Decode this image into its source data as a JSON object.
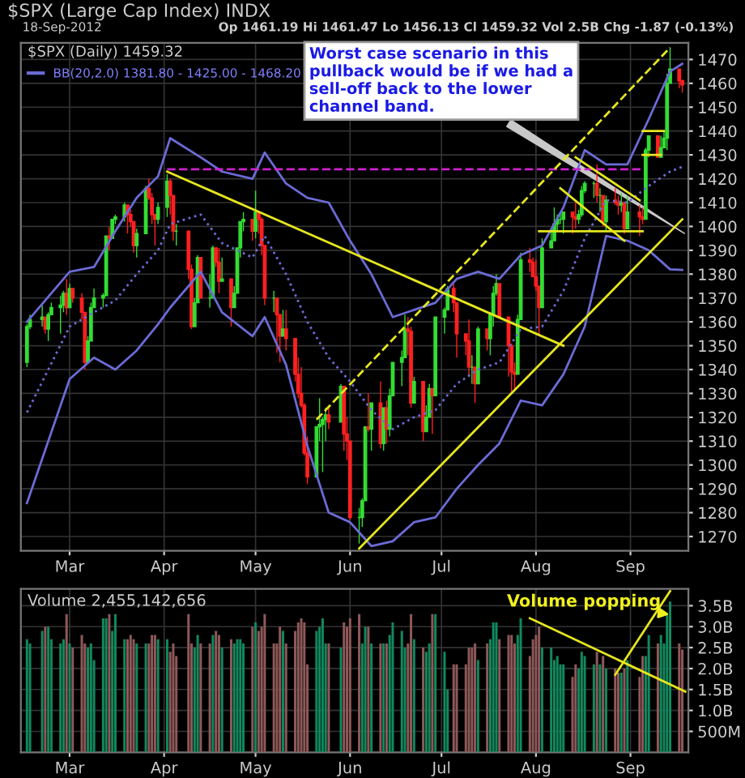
{
  "chart_data": [
    {
      "type": "candlestick",
      "title": "$SPX (Large Cap Index) INDX",
      "subtitle": "18-Sep-2012",
      "x": [
        "2012-02-16",
        "2012-02-17",
        "2012-02-21",
        "2012-02-22",
        "2012-02-23",
        "2012-02-24",
        "2012-02-27",
        "2012-02-28",
        "2012-02-29",
        "2012-03-01",
        "2012-03-02",
        "2012-03-05",
        "2012-03-06",
        "2012-03-07",
        "2012-03-08",
        "2012-03-09",
        "2012-03-12",
        "2012-03-13",
        "2012-03-14",
        "2012-03-15",
        "2012-03-16",
        "2012-03-19",
        "2012-03-20",
        "2012-03-21",
        "2012-03-22",
        "2012-03-23",
        "2012-03-26",
        "2012-03-27",
        "2012-03-28",
        "2012-03-29",
        "2012-03-30",
        "2012-04-02",
        "2012-04-03",
        "2012-04-04",
        "2012-04-05",
        "2012-04-09",
        "2012-04-10",
        "2012-04-11",
        "2012-04-12",
        "2012-04-13",
        "2012-04-16",
        "2012-04-17",
        "2012-04-18",
        "2012-04-19",
        "2012-04-20",
        "2012-04-23",
        "2012-04-24",
        "2012-04-25",
        "2012-04-26",
        "2012-04-27",
        "2012-04-30",
        "2012-05-01",
        "2012-05-02",
        "2012-05-03",
        "2012-05-04",
        "2012-05-07",
        "2012-05-08",
        "2012-05-09",
        "2012-05-10",
        "2012-05-11",
        "2012-05-14",
        "2012-05-15",
        "2012-05-16",
        "2012-05-17",
        "2012-05-18",
        "2012-05-21",
        "2012-05-22",
        "2012-05-23",
        "2012-05-24",
        "2012-05-25",
        "2012-05-29",
        "2012-05-30",
        "2012-05-31",
        "2012-06-01",
        "2012-06-04",
        "2012-06-05",
        "2012-06-06",
        "2012-06-07",
        "2012-06-08",
        "2012-06-11",
        "2012-06-12",
        "2012-06-13",
        "2012-06-14",
        "2012-06-15",
        "2012-06-18",
        "2012-06-19",
        "2012-06-20",
        "2012-06-21",
        "2012-06-22",
        "2012-06-25",
        "2012-06-26",
        "2012-06-27",
        "2012-06-28",
        "2012-06-29",
        "2012-07-02",
        "2012-07-03",
        "2012-07-05",
        "2012-07-06",
        "2012-07-09",
        "2012-07-10",
        "2012-07-11",
        "2012-07-12",
        "2012-07-13",
        "2012-07-16",
        "2012-07-17",
        "2012-07-18",
        "2012-07-19",
        "2012-07-20",
        "2012-07-23",
        "2012-07-24",
        "2012-07-25",
        "2012-07-26",
        "2012-07-27",
        "2012-07-30",
        "2012-07-31",
        "2012-08-01",
        "2012-08-02",
        "2012-08-03",
        "2012-08-06",
        "2012-08-07",
        "2012-08-08",
        "2012-08-09",
        "2012-08-10",
        "2012-08-13",
        "2012-08-14",
        "2012-08-15",
        "2012-08-16",
        "2012-08-17",
        "2012-08-20",
        "2012-08-21",
        "2012-08-22",
        "2012-08-23",
        "2012-08-24",
        "2012-08-27",
        "2012-08-28",
        "2012-08-29",
        "2012-08-30",
        "2012-08-31",
        "2012-09-04",
        "2012-09-05",
        "2012-09-06",
        "2012-09-07",
        "2012-09-10",
        "2012-09-11",
        "2012-09-12",
        "2012-09-13",
        "2012-09-14",
        "2012-09-17",
        "2012-09-18"
      ],
      "ohlc": [
        [
          1343,
          1359,
          1341,
          1358
        ],
        [
          1358,
          1363,
          1357,
          1361
        ],
        [
          1361,
          1367,
          1358,
          1362
        ],
        [
          1362,
          1362,
          1355,
          1357
        ],
        [
          1357,
          1364,
          1352,
          1363
        ],
        [
          1363,
          1368,
          1363,
          1366
        ],
        [
          1366,
          1371,
          1355,
          1367
        ],
        [
          1367,
          1373,
          1364,
          1372
        ],
        [
          1372,
          1378,
          1363,
          1366
        ],
        [
          1366,
          1376,
          1366,
          1374
        ],
        [
          1374,
          1374,
          1368,
          1370
        ],
        [
          1370,
          1372,
          1361,
          1364
        ],
        [
          1364,
          1364,
          1340,
          1343
        ],
        [
          1343,
          1354,
          1343,
          1352
        ],
        [
          1352,
          1368,
          1352,
          1366
        ],
        [
          1366,
          1374,
          1366,
          1370
        ],
        [
          1370,
          1372,
          1366,
          1371
        ],
        [
          1371,
          1396,
          1371,
          1396
        ],
        [
          1396,
          1400,
          1390,
          1395
        ],
        [
          1395,
          1403,
          1395,
          1403
        ],
        [
          1403,
          1405,
          1401,
          1404
        ],
        [
          1404,
          1410,
          1402,
          1409
        ],
        [
          1409,
          1409,
          1397,
          1405
        ],
        [
          1405,
          1407,
          1400,
          1402
        ],
        [
          1402,
          1402,
          1389,
          1392
        ],
        [
          1392,
          1399,
          1387,
          1397
        ],
        [
          1397,
          1417,
          1397,
          1416
        ],
        [
          1416,
          1420,
          1411,
          1412
        ],
        [
          1412,
          1414,
          1401,
          1405
        ],
        [
          1405,
          1405,
          1392,
          1403
        ],
        [
          1403,
          1410,
          1401,
          1408
        ],
        [
          1408,
          1422,
          1404,
          1419
        ],
        [
          1419,
          1420,
          1405,
          1413
        ],
        [
          1413,
          1413,
          1394,
          1398
        ],
        [
          1398,
          1401,
          1392,
          1398
        ],
        [
          1398,
          1398,
          1378,
          1382
        ],
        [
          1382,
          1384,
          1357,
          1358
        ],
        [
          1358,
          1370,
          1358,
          1368
        ],
        [
          1368,
          1388,
          1368,
          1387
        ],
        [
          1387,
          1387,
          1370,
          1370
        ],
        [
          1370,
          1380,
          1366,
          1370
        ],
        [
          1370,
          1392,
          1370,
          1391
        ],
        [
          1391,
          1391,
          1383,
          1385
        ],
        [
          1385,
          1391,
          1372,
          1377
        ],
        [
          1377,
          1387,
          1377,
          1378
        ],
        [
          1378,
          1378,
          1358,
          1366
        ],
        [
          1366,
          1375,
          1366,
          1372
        ],
        [
          1372,
          1391,
          1372,
          1391
        ],
        [
          1391,
          1402,
          1387,
          1402
        ],
        [
          1402,
          1406,
          1398,
          1403
        ],
        [
          1403,
          1403,
          1394,
          1398
        ],
        [
          1398,
          1415,
          1395,
          1406
        ],
        [
          1406,
          1406,
          1397,
          1403
        ],
        [
          1403,
          1404,
          1388,
          1392
        ],
        [
          1392,
          1392,
          1367,
          1370
        ],
        [
          1370,
          1373,
          1364,
          1370
        ],
        [
          1370,
          1370,
          1347,
          1363
        ],
        [
          1363,
          1363,
          1343,
          1354
        ],
        [
          1354,
          1365,
          1354,
          1357
        ],
        [
          1357,
          1365,
          1348,
          1353
        ],
        [
          1353,
          1353,
          1335,
          1338
        ],
        [
          1338,
          1345,
          1328,
          1330
        ],
        [
          1330,
          1341,
          1324,
          1325
        ],
        [
          1325,
          1326,
          1304,
          1305
        ],
        [
          1305,
          1312,
          1292,
          1295
        ],
        [
          1295,
          1316,
          1295,
          1316
        ],
        [
          1316,
          1328,
          1310,
          1317
        ],
        [
          1317,
          1320,
          1297,
          1319
        ],
        [
          1319,
          1324,
          1310,
          1321
        ],
        [
          1321,
          1324,
          1315,
          1318
        ],
        [
          1318,
          1334,
          1318,
          1333
        ],
        [
          1333,
          1333,
          1306,
          1313
        ],
        [
          1313,
          1320,
          1302,
          1310
        ],
        [
          1310,
          1310,
          1277,
          1278
        ],
        [
          1278,
          1282,
          1267,
          1278
        ],
        [
          1278,
          1286,
          1274,
          1285
        ],
        [
          1285,
          1316,
          1285,
          1316
        ],
        [
          1316,
          1330,
          1314,
          1315
        ],
        [
          1315,
          1326,
          1306,
          1326
        ],
        [
          1326,
          1335,
          1307,
          1309
        ],
        [
          1309,
          1324,
          1306,
          1324
        ],
        [
          1324,
          1327,
          1309,
          1315
        ],
        [
          1315,
          1332,
          1312,
          1329
        ],
        [
          1329,
          1343,
          1329,
          1343
        ],
        [
          1343,
          1348,
          1333,
          1345
        ],
        [
          1345,
          1363,
          1345,
          1357
        ],
        [
          1357,
          1362,
          1346,
          1356
        ],
        [
          1356,
          1358,
          1324,
          1326
        ],
        [
          1326,
          1337,
          1326,
          1335
        ],
        [
          1335,
          1335,
          1310,
          1314
        ],
        [
          1314,
          1325,
          1314,
          1320
        ],
        [
          1320,
          1334,
          1320,
          1332
        ],
        [
          1332,
          1332,
          1313,
          1329
        ],
        [
          1329,
          1362,
          1329,
          1362
        ],
        [
          1362,
          1366,
          1355,
          1365
        ],
        [
          1365,
          1375,
          1365,
          1374
        ],
        [
          1374,
          1376,
          1364,
          1368
        ],
        [
          1368,
          1368,
          1345,
          1355
        ],
        [
          1355,
          1355,
          1346,
          1352
        ],
        [
          1352,
          1361,
          1337,
          1341
        ],
        [
          1341,
          1346,
          1334,
          1341
        ],
        [
          1341,
          1341,
          1326,
          1334
        ],
        [
          1334,
          1358,
          1334,
          1357
        ],
        [
          1357,
          1357,
          1348,
          1353
        ],
        [
          1353,
          1364,
          1346,
          1363
        ],
        [
          1363,
          1375,
          1358,
          1372
        ],
        [
          1372,
          1380,
          1371,
          1376
        ],
        [
          1376,
          1376,
          1362,
          1362
        ],
        [
          1362,
          1362,
          1337,
          1350
        ],
        [
          1350,
          1351,
          1330,
          1339
        ],
        [
          1339,
          1343,
          1331,
          1338
        ],
        [
          1338,
          1363,
          1338,
          1361
        ],
        [
          1361,
          1389,
          1361,
          1386
        ],
        [
          1386,
          1391,
          1381,
          1385
        ],
        [
          1385,
          1387,
          1379,
          1379
        ],
        [
          1379,
          1386,
          1373,
          1375
        ],
        [
          1375,
          1375,
          1354,
          1366
        ],
        [
          1366,
          1395,
          1366,
          1391
        ],
        [
          1391,
          1399,
          1391,
          1394
        ],
        [
          1394,
          1408,
          1394,
          1401
        ],
        [
          1401,
          1405,
          1398,
          1403
        ],
        [
          1403,
          1406,
          1401,
          1403
        ],
        [
          1403,
          1406,
          1397,
          1406
        ],
        [
          1406,
          1406,
          1397,
          1404
        ],
        [
          1404,
          1410,
          1399,
          1403
        ],
        [
          1403,
          1407,
          1401,
          1405
        ],
        [
          1405,
          1417,
          1404,
          1415
        ],
        [
          1415,
          1419,
          1414,
          1418
        ],
        [
          1418,
          1419,
          1412,
          1418
        ],
        [
          1418,
          1426,
          1410,
          1413
        ],
        [
          1413,
          1416,
          1406,
          1413
        ],
        [
          1413,
          1413,
          1400,
          1402
        ],
        [
          1402,
          1413,
          1398,
          1411
        ],
        [
          1411,
          1416,
          1409,
          1410
        ],
        [
          1410,
          1413,
          1405,
          1409
        ],
        [
          1409,
          1414,
          1406,
          1410
        ],
        [
          1410,
          1410,
          1397,
          1399
        ],
        [
          1399,
          1413,
          1399,
          1406
        ],
        [
          1406,
          1409,
          1396,
          1404
        ],
        [
          1404,
          1408,
          1401,
          1403
        ],
        [
          1403,
          1433,
          1403,
          1432
        ],
        [
          1432,
          1438,
          1429,
          1438
        ],
        [
          1438,
          1438,
          1429,
          1429
        ],
        [
          1429,
          1438,
          1429,
          1433
        ],
        [
          1433,
          1440,
          1433,
          1437
        ],
        [
          1437,
          1464,
          1432,
          1460
        ],
        [
          1460,
          1475,
          1460,
          1466
        ],
        [
          1466,
          1466,
          1458,
          1461
        ],
        [
          1461.19,
          1461.47,
          1456.13,
          1459.32
        ]
      ],
      "series": [
        {
          "name": "BB(20,2.0) 1381.80 - 1425.00 - 1468.20",
          "type": "line",
          "color": "#6b6bd6",
          "line_style": "solid",
          "x": [
            "2012-02-16",
            "2012-03-01",
            "2012-03-09",
            "2012-03-16",
            "2012-03-23",
            "2012-03-30",
            "2012-04-03",
            "2012-04-13",
            "2012-04-20",
            "2012-04-30",
            "2012-05-04",
            "2012-05-11",
            "2012-05-18",
            "2012-05-25",
            "2012-06-01",
            "2012-06-08",
            "2012-06-15",
            "2012-06-22",
            "2012-06-29",
            "2012-07-06",
            "2012-07-13",
            "2012-07-20",
            "2012-07-27",
            "2012-08-03",
            "2012-08-10",
            "2012-08-17",
            "2012-08-24",
            "2012-08-31",
            "2012-09-07",
            "2012-09-14",
            "2012-09-18"
          ],
          "values": [
            1360,
            1381,
            1383,
            1398,
            1412,
            1421,
            1437,
            1429,
            1423,
            1420,
            1431,
            1418,
            1412,
            1410,
            1394,
            1380,
            1362,
            1365,
            1368,
            1378,
            1381,
            1378,
            1388,
            1392,
            1408,
            1432,
            1426,
            1426,
            1445,
            1465,
            1468.2
          ]
        },
        {
          "type": "line",
          "color": "#6b6bd6",
          "line_style": "dotted",
          "x": [
            "2012-02-16",
            "2012-03-01",
            "2012-03-09",
            "2012-03-16",
            "2012-03-23",
            "2012-03-30",
            "2012-04-03",
            "2012-04-13",
            "2012-04-20",
            "2012-04-30",
            "2012-05-04",
            "2012-05-11",
            "2012-05-18",
            "2012-05-25",
            "2012-06-01",
            "2012-06-08",
            "2012-06-15",
            "2012-06-22",
            "2012-06-29",
            "2012-07-06",
            "2012-07-13",
            "2012-07-20",
            "2012-07-27",
            "2012-08-03",
            "2012-08-10",
            "2012-08-17",
            "2012-08-24",
            "2012-08-31",
            "2012-09-07",
            "2012-09-14",
            "2012-09-18"
          ],
          "values": [
            1322,
            1358,
            1364,
            1369,
            1380,
            1390,
            1401,
            1405,
            1393,
            1387,
            1396,
            1380,
            1360,
            1345,
            1335,
            1323,
            1315,
            1320,
            1323,
            1334,
            1340,
            1343,
            1357,
            1358,
            1373,
            1395,
            1411,
            1410,
            1417,
            1423,
            1425
          ]
        },
        {
          "type": "line",
          "color": "#6b6bd6",
          "line_style": "solid",
          "x": [
            "2012-02-16",
            "2012-03-01",
            "2012-03-09",
            "2012-03-16",
            "2012-03-23",
            "2012-03-30",
            "2012-04-03",
            "2012-04-13",
            "2012-04-20",
            "2012-04-30",
            "2012-05-04",
            "2012-05-11",
            "2012-05-18",
            "2012-05-25",
            "2012-06-01",
            "2012-06-08",
            "2012-06-15",
            "2012-06-22",
            "2012-06-29",
            "2012-07-06",
            "2012-07-13",
            "2012-07-20",
            "2012-07-27",
            "2012-08-03",
            "2012-08-10",
            "2012-08-17",
            "2012-08-24",
            "2012-08-31",
            "2012-09-07",
            "2012-09-14",
            "2012-09-18"
          ],
          "values": [
            1284,
            1336,
            1345,
            1340,
            1348,
            1359,
            1366,
            1381,
            1364,
            1354,
            1362,
            1342,
            1308,
            1280,
            1276,
            1266,
            1268,
            1276,
            1278,
            1290,
            1300,
            1309,
            1327,
            1325,
            1338,
            1358,
            1396,
            1394,
            1390,
            1382,
            1381.8
          ]
        },
        {
          "type": "line",
          "color": "#cc22cc",
          "line_style": "dashed",
          "x": [
            "2012-04-02",
            "2012-09-05"
          ],
          "values": [
            1424,
            1424
          ]
        },
        {
          "type": "line",
          "color": "#e6e61e",
          "line_style": "solid",
          "x": [
            "2012-04-02",
            "2012-08-10"
          ],
          "values": [
            1423,
            1350
          ]
        },
        {
          "type": "line",
          "color": "#e6e61e",
          "line_style": "solid",
          "x": [
            "2012-06-04",
            "2012-09-18"
          ],
          "values": [
            1265,
            1403
          ]
        },
        {
          "type": "line",
          "color": "#e6e61e",
          "line_style": "dashed",
          "x": [
            "2012-05-21",
            "2012-09-14"
          ],
          "values": [
            1319,
            1475
          ]
        },
        {
          "type": "line",
          "color": "#e6e61e",
          "line_style": "solid",
          "x": [
            "2012-08-02",
            "2012-09-05"
          ],
          "values": [
            1398,
            1398
          ]
        },
        {
          "type": "line",
          "color": "#e6e61e",
          "line_style": "solid",
          "x": [
            "2012-08-09",
            "2012-08-30"
          ],
          "values": [
            1416,
            1394
          ]
        },
        {
          "type": "line",
          "color": "#e6e61e",
          "line_style": "solid",
          "x": [
            "2012-08-14",
            "2012-09-04"
          ],
          "values": [
            1429,
            1411
          ]
        },
        {
          "type": "line",
          "color": "#e6e61e",
          "line_style": "solid",
          "x": [
            "2012-09-05",
            "2012-09-12"
          ],
          "values": [
            1440,
            1440
          ]
        },
        {
          "type": "line",
          "color": "#e6e61e",
          "line_style": "solid",
          "x": [
            "2012-09-05",
            "2012-09-11"
          ],
          "values": [
            1430,
            1430
          ]
        }
      ],
      "annotations": [
        "$SPX (Daily) 1459.32",
        "Op 1461.19 Hi 1461.47 Lo 1456.13 Cl 1459.32 Vol 2.5B Chg -1.87 (-0.13%)",
        "Worst case scenario in this\npullback would be if we had a\nsell-off back to the lower\nchannel band."
      ],
      "xlim": [
        "2012-02-14",
        "2012-09-20"
      ],
      "xticks": [
        {
          "value": "2012-03-01",
          "label": "Mar"
        },
        {
          "value": "2012-04-01",
          "label": "Apr"
        },
        {
          "value": "2012-05-01",
          "label": "May"
        },
        {
          "value": "2012-06-01",
          "label": "Jun"
        },
        {
          "value": "2012-07-01",
          "label": "Jul"
        },
        {
          "value": "2012-08-01",
          "label": "Aug"
        },
        {
          "value": "2012-09-01",
          "label": "Sep"
        }
      ],
      "ylim": [
        1264,
        1477
      ],
      "yticks": [
        1270,
        1280,
        1290,
        1300,
        1310,
        1320,
        1330,
        1340,
        1350,
        1360,
        1370,
        1380,
        1390,
        1400,
        1410,
        1420,
        1430,
        1440,
        1450,
        1460,
        1470
      ],
      "grid": true,
      "legend": "top left"
    },
    {
      "type": "bar",
      "title": "Volume 2,455,142,656",
      "x": [
        "2012-02-16",
        "2012-02-17",
        "2012-02-21",
        "2012-02-22",
        "2012-02-23",
        "2012-02-24",
        "2012-02-27",
        "2012-02-28",
        "2012-02-29",
        "2012-03-01",
        "2012-03-02",
        "2012-03-05",
        "2012-03-06",
        "2012-03-07",
        "2012-03-08",
        "2012-03-09",
        "2012-03-12",
        "2012-03-13",
        "2012-03-14",
        "2012-03-15",
        "2012-03-16",
        "2012-03-19",
        "2012-03-20",
        "2012-03-21",
        "2012-03-22",
        "2012-03-23",
        "2012-03-26",
        "2012-03-27",
        "2012-03-28",
        "2012-03-29",
        "2012-03-30",
        "2012-04-02",
        "2012-04-03",
        "2012-04-04",
        "2012-04-05",
        "2012-04-09",
        "2012-04-10",
        "2012-04-11",
        "2012-04-12",
        "2012-04-13",
        "2012-04-16",
        "2012-04-17",
        "2012-04-18",
        "2012-04-19",
        "2012-04-20",
        "2012-04-23",
        "2012-04-24",
        "2012-04-25",
        "2012-04-26",
        "2012-04-27",
        "2012-04-30",
        "2012-05-01",
        "2012-05-02",
        "2012-05-03",
        "2012-05-04",
        "2012-05-07",
        "2012-05-08",
        "2012-05-09",
        "2012-05-10",
        "2012-05-11",
        "2012-05-14",
        "2012-05-15",
        "2012-05-16",
        "2012-05-17",
        "2012-05-18",
        "2012-05-21",
        "2012-05-22",
        "2012-05-23",
        "2012-05-24",
        "2012-05-25",
        "2012-05-29",
        "2012-05-30",
        "2012-05-31",
        "2012-06-01",
        "2012-06-04",
        "2012-06-05",
        "2012-06-06",
        "2012-06-07",
        "2012-06-08",
        "2012-06-11",
        "2012-06-12",
        "2012-06-13",
        "2012-06-14",
        "2012-06-15",
        "2012-06-18",
        "2012-06-19",
        "2012-06-20",
        "2012-06-21",
        "2012-06-22",
        "2012-06-25",
        "2012-06-26",
        "2012-06-27",
        "2012-06-28",
        "2012-06-29",
        "2012-07-02",
        "2012-07-03",
        "2012-07-05",
        "2012-07-06",
        "2012-07-09",
        "2012-07-10",
        "2012-07-11",
        "2012-07-12",
        "2012-07-13",
        "2012-07-16",
        "2012-07-17",
        "2012-07-18",
        "2012-07-19",
        "2012-07-20",
        "2012-07-23",
        "2012-07-24",
        "2012-07-25",
        "2012-07-26",
        "2012-07-27",
        "2012-07-30",
        "2012-07-31",
        "2012-08-01",
        "2012-08-02",
        "2012-08-03",
        "2012-08-06",
        "2012-08-07",
        "2012-08-08",
        "2012-08-09",
        "2012-08-10",
        "2012-08-13",
        "2012-08-14",
        "2012-08-15",
        "2012-08-16",
        "2012-08-17",
        "2012-08-20",
        "2012-08-21",
        "2012-08-22",
        "2012-08-23",
        "2012-08-24",
        "2012-08-27",
        "2012-08-28",
        "2012-08-29",
        "2012-08-30",
        "2012-08-31",
        "2012-09-04",
        "2012-09-05",
        "2012-09-06",
        "2012-09-07",
        "2012-09-10",
        "2012-09-11",
        "2012-09-12",
        "2012-09-13",
        "2012-09-14",
        "2012-09-17",
        "2012-09-18"
      ],
      "values": [
        2700000000,
        2600000000,
        2900000000,
        3000000000,
        3000000000,
        2700000000,
        2600000000,
        2700000000,
        3300000000,
        2600000000,
        2500000000,
        2800000000,
        2600000000,
        2500000000,
        2600000000,
        2200000000,
        3200000000,
        3200000000,
        3300000000,
        2900000000,
        3300000000,
        2700000000,
        2700000000,
        2800000000,
        2700000000,
        2600000000,
        2600000000,
        2600000000,
        2800000000,
        2800000000,
        2700000000,
        2700000000,
        2400000000,
        2600000000,
        2300000000,
        3300000000,
        2600000000,
        2500000000,
        2800000000,
        2600000000,
        2600000000,
        2800000000,
        2900000000,
        2800000000,
        2500000000,
        2700000000,
        2600000000,
        2700000000,
        2700000000,
        2600000000,
        3000000000,
        3100000000,
        2900000000,
        3000000000,
        3300000000,
        2600000000,
        2600000000,
        3000000000,
        2900000000,
        2600000000,
        2900000000,
        3100000000,
        3200000000,
        3100000000,
        2100000000,
        2900000000,
        3000000000,
        3200000000,
        2600000000,
        2600000000,
        2500000000,
        3100000000,
        3000000000,
        3200000000,
        3300000000,
        2600000000,
        3000000000,
        3000000000,
        2600000000,
        2600000000,
        2600000000,
        2600000000,
        2800000000,
        3100000000,
        2900000000,
        2500000000,
        2600000000,
        3300000000,
        2700000000,
        2500000000,
        2400000000,
        2600000000,
        3300000000,
        3300000000,
        2400000000,
        1500000000,
        2100000000,
        2100000000,
        2100000000,
        2500000000,
        2500000000,
        2600000000,
        2200000000,
        2600000000,
        2700000000,
        3100000000,
        3100000000,
        2700000000,
        2800000000,
        2800000000,
        2600000000,
        2800000000,
        3200000000,
        2300000000,
        2700000000,
        2800000000,
        3000000000,
        2500000000,
        2500000000,
        2200000000,
        2300000000,
        2100000000,
        2100000000,
        1800000000,
        2100000000,
        2000000000,
        2400000000,
        2300000000,
        2100000000,
        2400000000,
        2100000000,
        2300000000,
        2000000000,
        2000000000,
        1900000000,
        1900000000,
        2000000000,
        2200000000,
        1800000000,
        2300000000,
        2300000000,
        2800000000,
        2600000000,
        2800000000,
        2600000000,
        3300000000,
        3600000000,
        2600000000,
        2455142656
      ],
      "colors": [
        "#10895e",
        "#10895e",
        "#10895e",
        "#8e5858",
        "#10895e",
        "#10895e",
        "#10895e",
        "#10895e",
        "#8e5858",
        "#10895e",
        "#8e5858",
        "#8e5858",
        "#8e5858",
        "#10895e",
        "#10895e",
        "#10895e",
        "#10895e",
        "#10895e",
        "#8e5858",
        "#10895e",
        "#10895e",
        "#10895e",
        "#8e5858",
        "#8e5858",
        "#8e5858",
        "#10895e",
        "#10895e",
        "#8e5858",
        "#8e5858",
        "#8e5858",
        "#10895e",
        "#10895e",
        "#8e5858",
        "#8e5858",
        "#8e5858",
        "#8e5858",
        "#8e5858",
        "#10895e",
        "#10895e",
        "#8e5858",
        "#8e5858",
        "#10895e",
        "#8e5858",
        "#8e5858",
        "#10895e",
        "#8e5858",
        "#10895e",
        "#10895e",
        "#10895e",
        "#10895e",
        "#8e5858",
        "#10895e",
        "#8e5858",
        "#8e5858",
        "#8e5858",
        "#8e5858",
        "#8e5858",
        "#8e5858",
        "#10895e",
        "#8e5858",
        "#8e5858",
        "#8e5858",
        "#8e5858",
        "#8e5858",
        "#8e5858",
        "#10895e",
        "#10895e",
        "#10895e",
        "#10895e",
        "#8e5858",
        "#10895e",
        "#8e5858",
        "#8e5858",
        "#8e5858",
        "#8e5858",
        "#10895e",
        "#10895e",
        "#8e5858",
        "#10895e",
        "#8e5858",
        "#10895e",
        "#8e5858",
        "#10895e",
        "#10895e",
        "#10895e",
        "#10895e",
        "#8e5858",
        "#8e5858",
        "#10895e",
        "#8e5858",
        "#10895e",
        "#10895e",
        "#8e5858",
        "#10895e",
        "#10895e",
        "#10895e",
        "#8e5858",
        "#8e5858",
        "#8e5858",
        "#8e5858",
        "#8e5858",
        "#8e5858",
        "#10895e",
        "#8e5858",
        "#10895e",
        "#10895e",
        "#10895e",
        "#8e5858",
        "#8e5858",
        "#8e5858",
        "#8e5858",
        "#10895e",
        "#10895e",
        "#8e5858",
        "#8e5858",
        "#8e5858",
        "#8e5858",
        "#10895e",
        "#10895e",
        "#10895e",
        "#10895e",
        "#10895e",
        "#10895e",
        "#8e5858",
        "#8e5858",
        "#10895e",
        "#10895e",
        "#10895e",
        "#10895e",
        "#8e5858",
        "#10895e",
        "#8e5858",
        "#10895e",
        "#8e5858",
        "#8e5858",
        "#10895e",
        "#8e5858",
        "#10895e",
        "#8e5858",
        "#8e5858",
        "#10895e",
        "#10895e",
        "#8e5858",
        "#10895e",
        "#10895e",
        "#10895e",
        "#10895e",
        "#8e5858",
        "#8e5858"
      ],
      "series": [
        {
          "type": "line",
          "color": "#e6e61e",
          "line_style": "solid",
          "x": [
            "2012-07-30",
            "2012-09-19"
          ],
          "values": [
            3200000000,
            1450000000
          ]
        },
        {
          "type": "line",
          "color": "#e6e61e",
          "line_style": "solid",
          "x": [
            "2012-08-27",
            "2012-09-14"
          ],
          "values": [
            1850000000,
            3850000000
          ]
        }
      ],
      "annotations": [
        {
          "text": "Volume popping",
          "x": "2012-09-13",
          "y": 3300000000
        }
      ],
      "xlim": [
        "2012-02-14",
        "2012-09-20"
      ],
      "xticks": [
        {
          "value": "2012-03-01",
          "label": "Mar"
        },
        {
          "value": "2012-04-01",
          "label": "Apr"
        },
        {
          "value": "2012-05-01",
          "label": "May"
        },
        {
          "value": "2012-06-01",
          "label": "Jun"
        },
        {
          "value": "2012-07-01",
          "label": "Jul"
        },
        {
          "value": "2012-08-01",
          "label": "Aug"
        },
        {
          "value": "2012-09-01",
          "label": "Sep"
        }
      ],
      "ylim": [
        0,
        3900000000
      ],
      "yticks": [
        {
          "value": 500000000,
          "label": "500M"
        },
        {
          "value": 1000000000,
          "label": "1.0B"
        },
        {
          "value": 1500000000,
          "label": "1.5B"
        },
        {
          "value": 2000000000,
          "label": "2.0B"
        },
        {
          "value": 2500000000,
          "label": "2.5B"
        },
        {
          "value": 3000000000,
          "label": "3.0B"
        },
        {
          "value": 3500000000,
          "label": "3.5B"
        }
      ],
      "grid": true
    }
  ]
}
